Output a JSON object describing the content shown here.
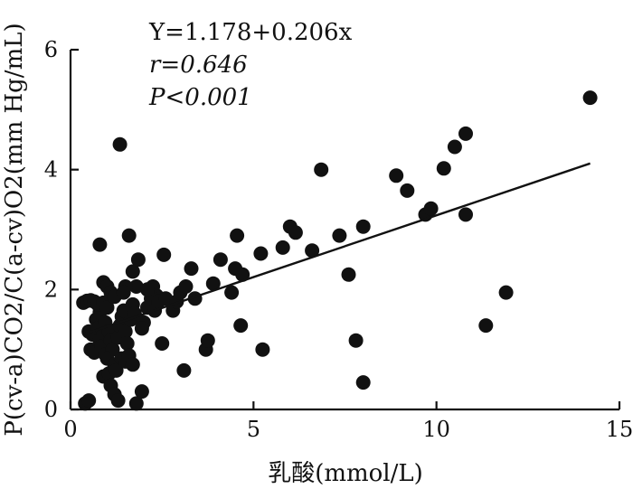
{
  "chart_data": {
    "type": "scatter",
    "xlabel": "乳酸(mmol/L)",
    "ylabel": "P(cv-a)CO2/C(a-cv)O2(mm Hg/mL)",
    "xlim": [
      0,
      15
    ],
    "ylim": [
      0,
      6
    ],
    "xticks": [
      0,
      5,
      10,
      15
    ],
    "yticks": [
      0,
      2,
      4,
      6
    ],
    "grid": false,
    "annotations": {
      "equation": "Y=1.178+0.206x",
      "r": "r=0.646",
      "p": "P<0.001"
    },
    "fit_line": {
      "intercept": 1.178,
      "slope": 0.206,
      "x_range": [
        0.5,
        14.2
      ]
    },
    "colors": {
      "points": "#111111",
      "line": "#111111"
    },
    "points": [
      [
        0.35,
        1.78
      ],
      [
        0.45,
        1.81
      ],
      [
        0.55,
        1.82
      ],
      [
        0.65,
        1.8
      ],
      [
        0.5,
        1.3
      ],
      [
        0.6,
        1.25
      ],
      [
        0.55,
        1.0
      ],
      [
        0.65,
        0.95
      ],
      [
        0.4,
        0.1
      ],
      [
        0.5,
        0.15
      ],
      [
        0.7,
        1.5
      ],
      [
        0.75,
        1.35
      ],
      [
        0.8,
        1.15
      ],
      [
        0.85,
        1.05
      ],
      [
        0.9,
        1.28
      ],
      [
        0.95,
        0.92
      ],
      [
        0.8,
        1.62
      ],
      [
        0.75,
        1.75
      ],
      [
        0.9,
        1.78
      ],
      [
        1.0,
        1.7
      ],
      [
        0.8,
        2.75
      ],
      [
        0.9,
        2.12
      ],
      [
        1.0,
        2.05
      ],
      [
        1.1,
        1.95
      ],
      [
        1.2,
        1.88
      ],
      [
        0.95,
        1.45
      ],
      [
        1.05,
        1.3
      ],
      [
        1.1,
        1.15
      ],
      [
        1.15,
        1.0
      ],
      [
        1.0,
        0.85
      ],
      [
        0.9,
        0.55
      ],
      [
        1.05,
        0.6
      ],
      [
        1.2,
        0.75
      ],
      [
        1.1,
        0.4
      ],
      [
        1.2,
        0.25
      ],
      [
        1.3,
        0.15
      ],
      [
        1.25,
        0.65
      ],
      [
        1.3,
        1.2
      ],
      [
        1.35,
        1.4
      ],
      [
        1.4,
        1.55
      ],
      [
        1.45,
        1.65
      ],
      [
        1.5,
        1.3
      ],
      [
        1.55,
        1.1
      ],
      [
        1.4,
        0.85
      ],
      [
        1.5,
        0.8
      ],
      [
        1.6,
        0.9
      ],
      [
        1.7,
        0.75
      ],
      [
        1.65,
        1.5
      ],
      [
        1.7,
        1.75
      ],
      [
        1.75,
        1.6
      ],
      [
        1.8,
        2.05
      ],
      [
        1.7,
        2.3
      ],
      [
        1.85,
        2.5
      ],
      [
        1.6,
        2.9
      ],
      [
        1.5,
        2.05
      ],
      [
        1.35,
        4.42
      ],
      [
        1.45,
        1.95
      ],
      [
        1.8,
        0.1
      ],
      [
        1.95,
        0.3
      ],
      [
        2.0,
        1.45
      ],
      [
        2.1,
        1.7
      ],
      [
        2.2,
        1.85
      ],
      [
        2.3,
        1.65
      ],
      [
        2.35,
        1.9
      ],
      [
        2.4,
        1.8
      ],
      [
        2.25,
        2.05
      ],
      [
        2.1,
        2.0
      ],
      [
        1.95,
        1.35
      ],
      [
        2.5,
        1.1
      ],
      [
        2.55,
        2.58
      ],
      [
        2.6,
        1.85
      ],
      [
        2.8,
        1.65
      ],
      [
        2.9,
        1.8
      ],
      [
        3.0,
        1.95
      ],
      [
        3.15,
        2.05
      ],
      [
        3.3,
        2.35
      ],
      [
        3.4,
        1.85
      ],
      [
        3.1,
        0.65
      ],
      [
        3.7,
        1.0
      ],
      [
        3.75,
        1.15
      ],
      [
        3.9,
        2.1
      ],
      [
        4.1,
        2.5
      ],
      [
        4.4,
        1.95
      ],
      [
        4.5,
        2.35
      ],
      [
        4.55,
        2.9
      ],
      [
        4.7,
        2.25
      ],
      [
        4.65,
        1.4
      ],
      [
        5.2,
        2.6
      ],
      [
        5.25,
        1.0
      ],
      [
        5.8,
        2.7
      ],
      [
        6.0,
        3.05
      ],
      [
        6.15,
        2.95
      ],
      [
        6.6,
        2.65
      ],
      [
        6.85,
        4.0
      ],
      [
        7.35,
        2.9
      ],
      [
        7.6,
        2.25
      ],
      [
        7.8,
        1.15
      ],
      [
        8.0,
        3.05
      ],
      [
        8.0,
        0.45
      ],
      [
        8.9,
        3.9
      ],
      [
        9.2,
        3.65
      ],
      [
        9.7,
        3.25
      ],
      [
        9.85,
        3.35
      ],
      [
        10.2,
        4.02
      ],
      [
        10.5,
        4.38
      ],
      [
        10.8,
        4.6
      ],
      [
        10.8,
        3.25
      ],
      [
        11.35,
        1.4
      ],
      [
        11.9,
        1.95
      ],
      [
        14.2,
        5.2
      ]
    ]
  }
}
